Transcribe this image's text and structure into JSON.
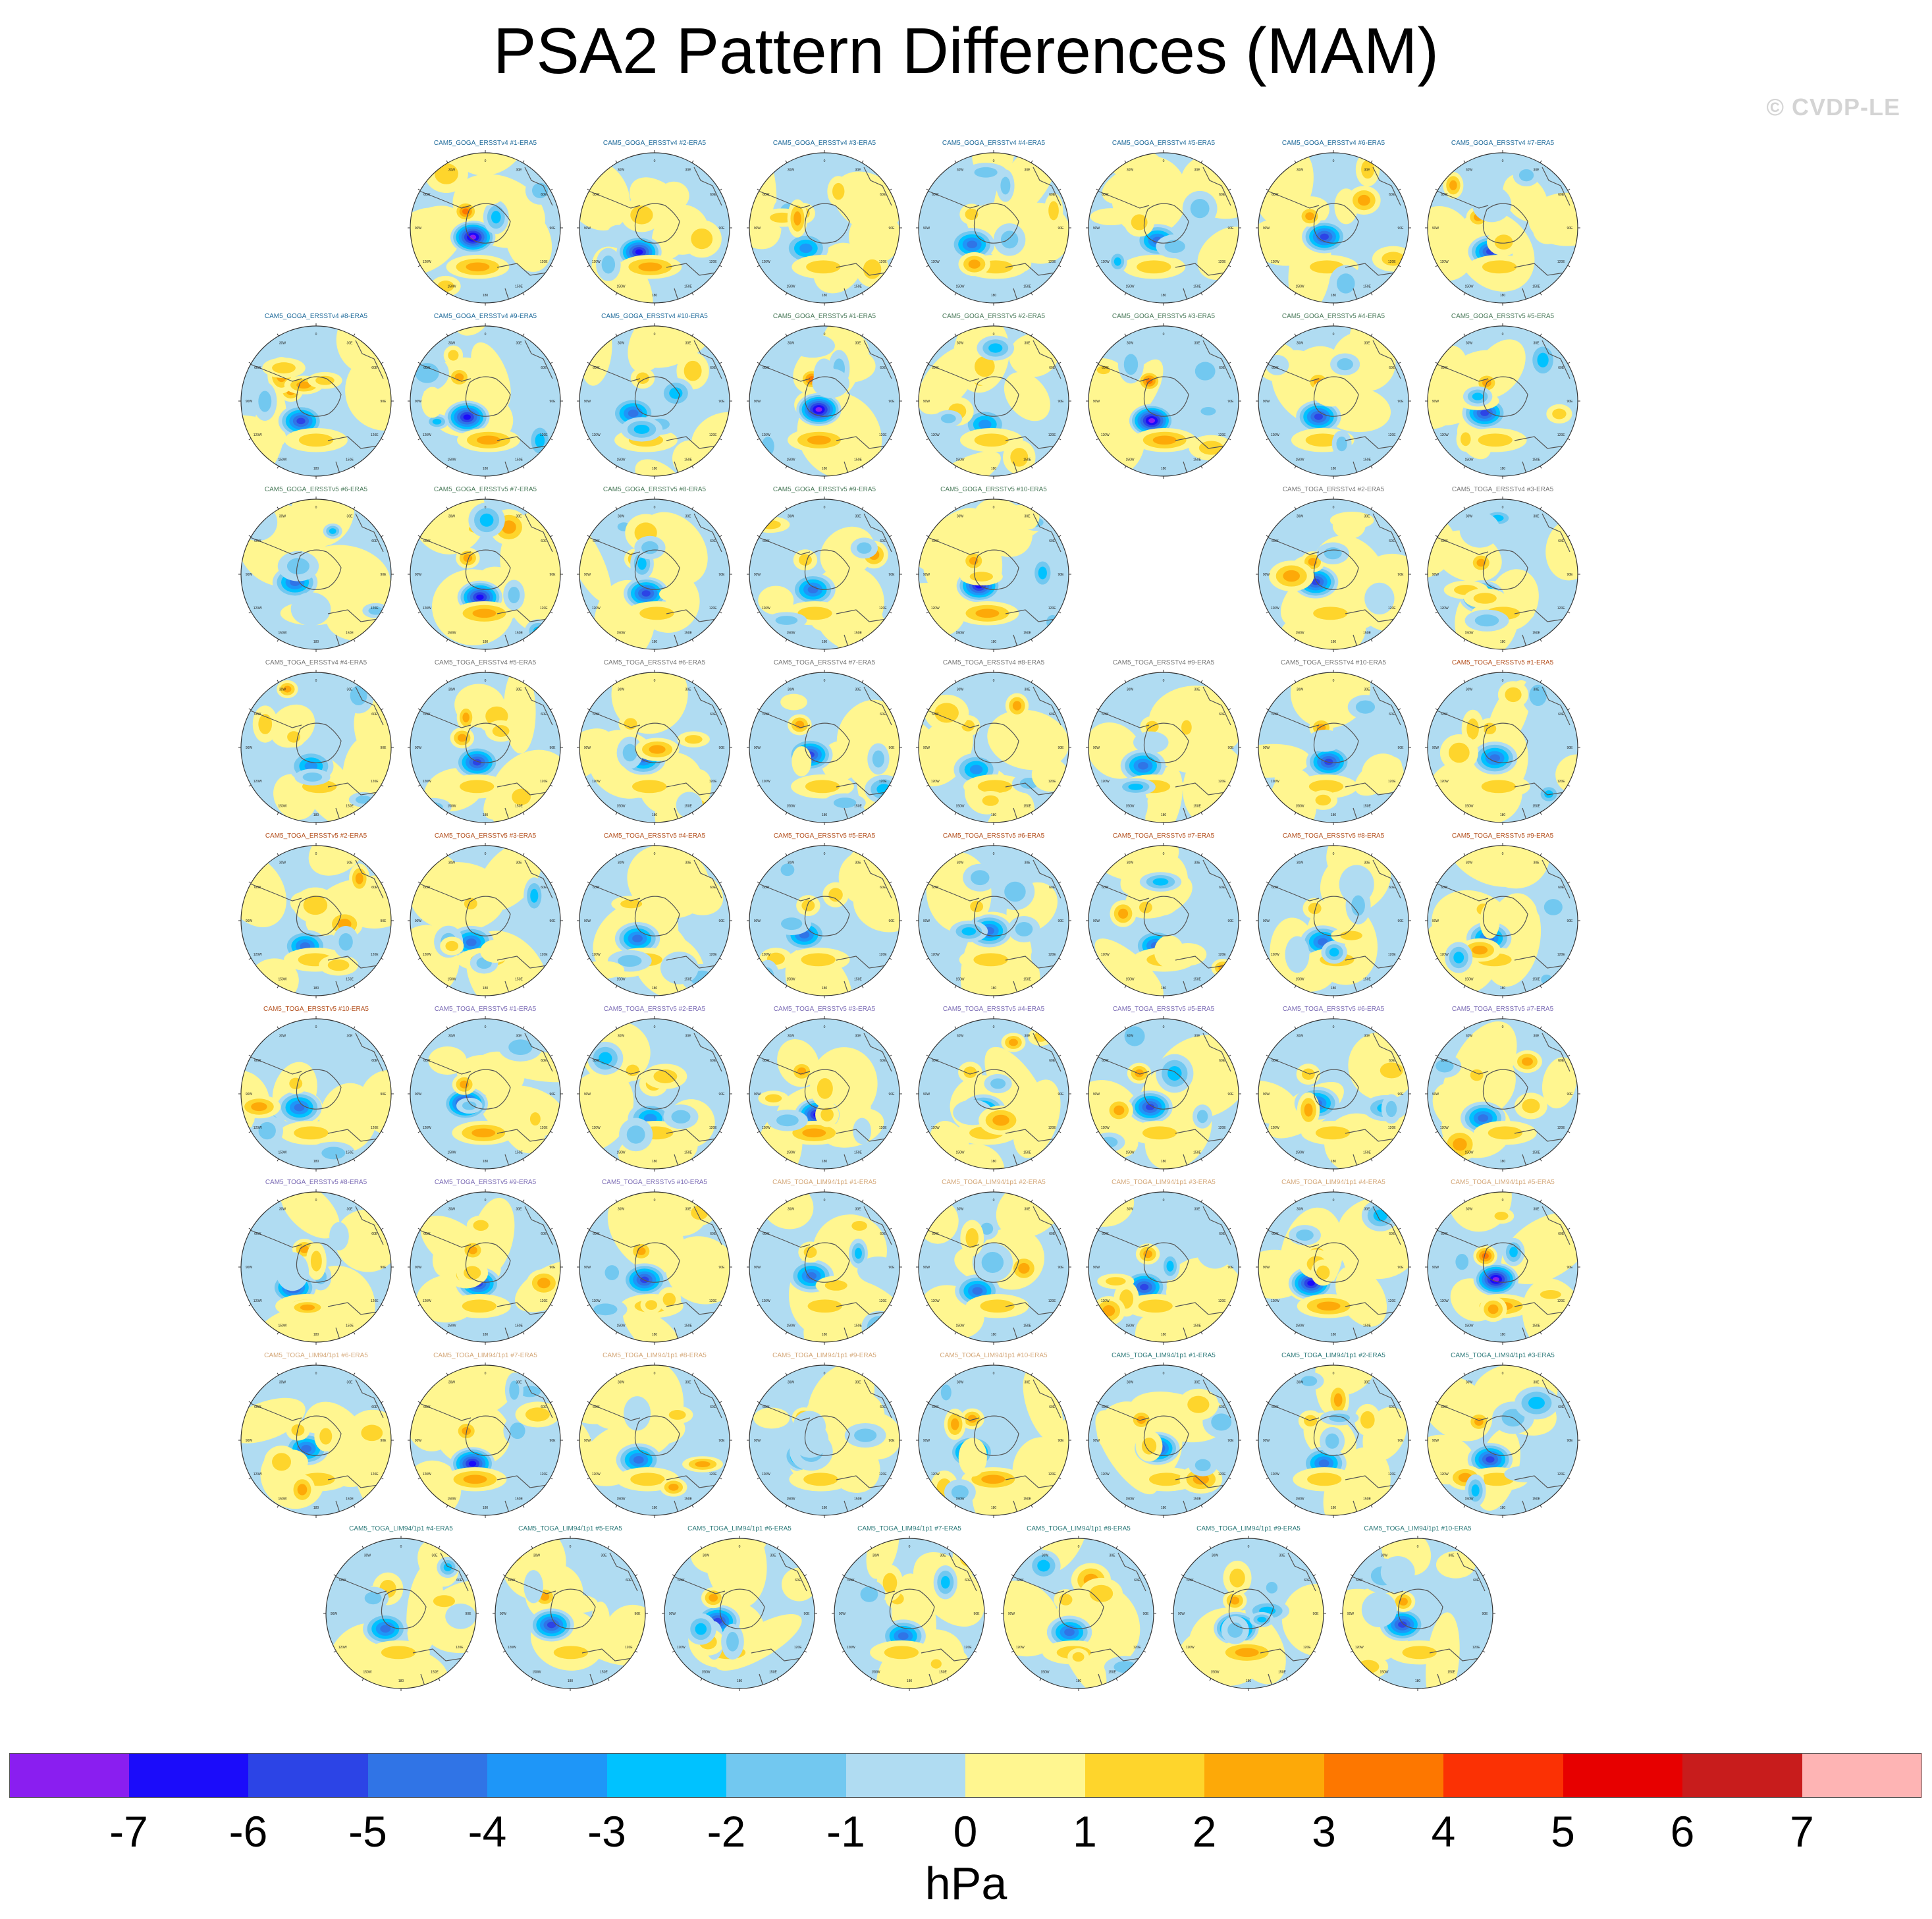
{
  "title": "PSA2 Pattern Differences (MAM)",
  "credit": "© CVDP-LE",
  "units": "hPa",
  "colorbar": {
    "colors": [
      "#8a1ef0",
      "#1b0cfa",
      "#2c44e6",
      "#3074e6",
      "#1e96f8",
      "#00c2ff",
      "#72c8f0",
      "#b0dcf2",
      "#fff690",
      "#fed52c",
      "#fda908",
      "#fd7700",
      "#fb3104",
      "#e70000",
      "#c81c1c",
      "#feb4b4"
    ],
    "labels": [
      "-7",
      "-6",
      "-5",
      "-4",
      "-3",
      "-2",
      "-1",
      "0",
      "1",
      "2",
      "3",
      "4",
      "5",
      "6",
      "7"
    ]
  },
  "map_labels": [
    "0",
    "30W",
    "60W",
    "90W",
    "120W",
    "150W",
    "180",
    "150E",
    "120E",
    "90E",
    "60E",
    "30E"
  ],
  "chart_data": {
    "type": "polar-contour-panels",
    "title": "PSA2 Pattern Differences (MAM)",
    "units": "hPa",
    "contour_levels": [
      -7,
      -6,
      -5,
      -4,
      -3,
      -2,
      -1,
      0,
      1,
      2,
      3,
      4,
      5,
      6,
      7
    ],
    "layout": {
      "rows": [
        {
          "start_col": 1,
          "count": 7
        },
        {
          "start_col": 0,
          "count": 8
        },
        {
          "start_col": 0,
          "count": 5,
          "skip_after": 2,
          "rest": 2
        },
        {
          "start_col": 0,
          "count": 8
        },
        {
          "start_col": 0,
          "count": 8
        },
        {
          "start_col": 0,
          "count": 8
        },
        {
          "start_col": 0,
          "count": 8
        },
        {
          "start_col": 0,
          "count": 8
        },
        {
          "start_col": 0.5,
          "count": 7
        }
      ]
    },
    "panels": [
      {
        "title": "CAM5_GOGA_ERSSTv4 #1-ERA5",
        "color": "#1e6a9a",
        "amp": 1.0
      },
      {
        "title": "CAM5_GOGA_ERSSTv4 #2-ERA5",
        "color": "#1e6a9a",
        "amp": 0.85
      },
      {
        "title": "CAM5_GOGA_ERSSTv4 #3-ERA5",
        "color": "#1e6a9a",
        "amp": 0.35
      },
      {
        "title": "CAM5_GOGA_ERSSTv4 #4-ERA5",
        "color": "#1e6a9a",
        "amp": 0.45
      },
      {
        "title": "CAM5_GOGA_ERSSTv4 #5-ERA5",
        "color": "#1e6a9a",
        "amp": 0.4
      },
      {
        "title": "CAM5_GOGA_ERSSTv4 #6-ERA5",
        "color": "#1e6a9a",
        "amp": 0.7
      },
      {
        "title": "CAM5_GOGA_ERSSTv4 #7-ERA5",
        "color": "#1e6a9a",
        "amp": 0.65
      },
      {
        "title": "CAM5_GOGA_ERSSTv4 #8-ERA5",
        "color": "#1e6a9a",
        "amp": 0.55
      },
      {
        "title": "CAM5_GOGA_ERSSTv4 #9-ERA5",
        "color": "#1e6a9a",
        "amp": 0.8
      },
      {
        "title": "CAM5_GOGA_ERSSTv4 #10-ERA5",
        "color": "#1e6a9a",
        "amp": 0.5
      },
      {
        "title": "CAM5_GOGA_ERSSTv5 #1-ERA5",
        "color": "#4a7a5a",
        "amp": 1.0
      },
      {
        "title": "CAM5_GOGA_ERSSTv5 #2-ERA5",
        "color": "#4a7a5a",
        "amp": 0.35
      },
      {
        "title": "CAM5_GOGA_ERSSTv5 #3-ERA5",
        "color": "#4a7a5a",
        "amp": 0.95
      },
      {
        "title": "CAM5_GOGA_ERSSTv5 #4-ERA5",
        "color": "#4a7a5a",
        "amp": 0.55
      },
      {
        "title": "CAM5_GOGA_ERSSTv5 #5-ERA5",
        "color": "#4a7a5a",
        "amp": 0.6
      },
      {
        "title": "CAM5_GOGA_ERSSTv5 #6-ERA5",
        "color": "#4a7a5a",
        "amp": 0.5
      },
      {
        "title": "CAM5_GOGA_ERSSTv5 #7-ERA5",
        "color": "#4a7a5a",
        "amp": 0.8
      },
      {
        "title": "CAM5_GOGA_ERSSTv5 #8-ERA5",
        "color": "#4a7a5a",
        "amp": 0.65
      },
      {
        "title": "CAM5_GOGA_ERSSTv5 #9-ERA5",
        "color": "#4a7a5a",
        "amp": 0.45
      },
      {
        "title": "CAM5_GOGA_ERSSTv5 #10-ERA5",
        "color": "#4a7a5a",
        "amp": 0.85
      },
      {
        "title": "CAM5_TOGA_ERSSTv4 #2-ERA5",
        "color": "#777777",
        "amp": 0.7
      },
      {
        "title": "CAM5_TOGA_ERSSTv4 #3-ERA5",
        "color": "#777777",
        "amp": 0.6
      },
      {
        "title": "CAM5_TOGA_ERSSTv4 #4-ERA5",
        "color": "#777777",
        "amp": 0.35
      },
      {
        "title": "CAM5_TOGA_ERSSTv4 #5-ERA5",
        "color": "#777777",
        "amp": 0.55
      },
      {
        "title": "CAM5_TOGA_ERSSTv4 #6-ERA5",
        "color": "#777777",
        "amp": 0.45
      },
      {
        "title": "CAM5_TOGA_ERSSTv4 #7-ERA5",
        "color": "#777777",
        "amp": 0.6
      },
      {
        "title": "CAM5_TOGA_ERSSTv4 #8-ERA5",
        "color": "#777777",
        "amp": 0.35
      },
      {
        "title": "CAM5_TOGA_ERSSTv4 #9-ERA5",
        "color": "#777777",
        "amp": 0.5
      },
      {
        "title": "CAM5_TOGA_ERSSTv4 #10-ERA5",
        "color": "#777777",
        "amp": 0.55
      },
      {
        "title": "CAM5_TOGA_ERSSTv5 #1-ERA5",
        "color": "#b4501e",
        "amp": 0.4
      },
      {
        "title": "CAM5_TOGA_ERSSTv5 #2-ERA5",
        "color": "#b4501e",
        "amp": 0.4
      },
      {
        "title": "CAM5_TOGA_ERSSTv5 #3-ERA5",
        "color": "#b4501e",
        "amp": 0.4
      },
      {
        "title": "CAM5_TOGA_ERSSTv5 #4-ERA5",
        "color": "#b4501e",
        "amp": 0.4
      },
      {
        "title": "CAM5_TOGA_ERSSTv5 #5-ERA5",
        "color": "#b4501e",
        "amp": 0.4
      },
      {
        "title": "CAM5_TOGA_ERSSTv5 #6-ERA5",
        "color": "#b4501e",
        "amp": 0.4
      },
      {
        "title": "CAM5_TOGA_ERSSTv5 #7-ERA5",
        "color": "#b4501e",
        "amp": 0.4
      },
      {
        "title": "CAM5_TOGA_ERSSTv5 #8-ERA5",
        "color": "#b4501e",
        "amp": 0.4
      },
      {
        "title": "CAM5_TOGA_ERSSTv5 #9-ERA5",
        "color": "#b4501e",
        "amp": 0.4
      },
      {
        "title": "CAM5_TOGA_ERSSTv5 #10-ERA5",
        "color": "#b4501e",
        "amp": 0.4
      },
      {
        "title": "CAM5_TOGA_ERSSTv5 #1-ERA5",
        "color": "#7a6ab4",
        "amp": 0.8
      },
      {
        "title": "CAM5_TOGA_ERSSTv5 #2-ERA5",
        "color": "#7a6ab4",
        "amp": 0.35
      },
      {
        "title": "CAM5_TOGA_ERSSTv5 #3-ERA5",
        "color": "#7a6ab4",
        "amp": 0.85
      },
      {
        "title": "CAM5_TOGA_ERSSTv5 #4-ERA5",
        "color": "#7a6ab4",
        "amp": 0.5
      },
      {
        "title": "CAM5_TOGA_ERSSTv5 #5-ERA5",
        "color": "#7a6ab4",
        "amp": 0.55
      },
      {
        "title": "CAM5_TOGA_ERSSTv5 #6-ERA5",
        "color": "#7a6ab4",
        "amp": 0.4
      },
      {
        "title": "CAM5_TOGA_ERSSTv5 #7-ERA5",
        "color": "#7a6ab4",
        "amp": 0.5
      },
      {
        "title": "CAM5_TOGA_ERSSTv5 #8-ERA5",
        "color": "#7a6ab4",
        "amp": 0.65
      },
      {
        "title": "CAM5_TOGA_ERSSTv5 #9-ERA5",
        "color": "#7a6ab4",
        "amp": 0.6
      },
      {
        "title": "CAM5_TOGA_ERSSTv5 #10-ERA5",
        "color": "#7a6ab4",
        "amp": 0.7
      },
      {
        "title": "CAM5_TOGA_LIM94/1p1 #1-ERA5",
        "color": "#d4a87a",
        "amp": 0.5
      },
      {
        "title": "CAM5_TOGA_LIM94/1p1 #2-ERA5",
        "color": "#d4a87a",
        "amp": 0.4
      },
      {
        "title": "CAM5_TOGA_LIM94/1p1 #3-ERA5",
        "color": "#d4a87a",
        "amp": 0.55
      },
      {
        "title": "CAM5_TOGA_LIM94/1p1 #4-ERA5",
        "color": "#d4a87a",
        "amp": 0.75
      },
      {
        "title": "CAM5_TOGA_LIM94/1p1 #5-ERA5",
        "color": "#d4a87a",
        "amp": 1.0
      },
      {
        "title": "CAM5_TOGA_LIM94/1p1 #6-ERA5",
        "color": "#d4a87a",
        "amp": 0.5
      },
      {
        "title": "CAM5_TOGA_LIM94/1p1 #7-ERA5",
        "color": "#d4a87a",
        "amp": 0.85
      },
      {
        "title": "CAM5_TOGA_LIM94/1p1 #8-ERA5",
        "color": "#d4a87a",
        "amp": 0.5
      },
      {
        "title": "CAM5_TOGA_LIM94/1p1 #9-ERA5",
        "color": "#d4a87a",
        "amp": 0.6
      },
      {
        "title": "CAM5_TOGA_LIM94/1p1 #10-ERA5",
        "color": "#d4a87a",
        "amp": 0.85
      },
      {
        "title": "CAM5_TOGA_LIM94/1p1 #1-ERA5",
        "color": "#2e7a7a",
        "amp": 0.6
      },
      {
        "title": "CAM5_TOGA_LIM94/1p1 #2-ERA5",
        "color": "#2e7a7a",
        "amp": 0.45
      },
      {
        "title": "CAM5_TOGA_LIM94/1p1 #3-ERA5",
        "color": "#2e7a7a",
        "amp": 0.65
      },
      {
        "title": "CAM5_TOGA_LIM94/1p1 #4-ERA5",
        "color": "#2e7a7a",
        "amp": 0.5
      },
      {
        "title": "CAM5_TOGA_LIM94/1p1 #5-ERA5",
        "color": "#2e7a7a",
        "amp": 0.65
      },
      {
        "title": "CAM5_TOGA_LIM94/1p1 #6-ERA5",
        "color": "#2e7a7a",
        "amp": 0.55
      },
      {
        "title": "CAM5_TOGA_LIM94/1p1 #7-ERA5",
        "color": "#2e7a7a",
        "amp": 0.4
      },
      {
        "title": "CAM5_TOGA_LIM94/1p1 #8-ERA5",
        "color": "#2e7a7a",
        "amp": 0.5
      },
      {
        "title": "CAM5_TOGA_LIM94/1p1 #9-ERA5",
        "color": "#2e7a7a",
        "amp": 0.75
      },
      {
        "title": "CAM5_TOGA_LIM94/1p1 #10-ERA5",
        "color": "#2e7a7a",
        "amp": 0.65
      }
    ]
  }
}
